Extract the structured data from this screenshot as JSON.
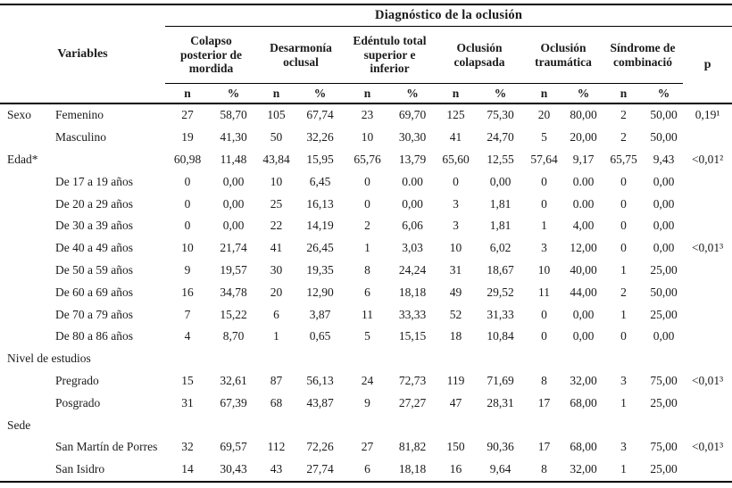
{
  "page": {
    "background": "#ffffff",
    "text_color": "#1b1b1b",
    "rule_color": "#000000"
  },
  "table": {
    "title": "Diagnóstico de la oclusión",
    "variables_header": "Variables",
    "p_header": "p",
    "groups": [
      "Colapso posterior de mordida",
      "Desarmonía oclusal",
      "Edéntulo total superior e inferior",
      "Oclusión colapsada",
      "Oclusión traumática",
      "Síndrome de combinació"
    ],
    "sub": [
      "n",
      "%"
    ],
    "rows": [
      {
        "cat": "Sexo",
        "label": "Femenino",
        "values": [
          "27",
          "58,70",
          "105",
          "67,74",
          "23",
          "69,70",
          "125",
          "75,30",
          "20",
          "80,00",
          "2",
          "50,00"
        ],
        "p": "0,19¹"
      },
      {
        "cat": "",
        "label": "Masculino",
        "values": [
          "19",
          "41,30",
          "50",
          "32,26",
          "10",
          "30,30",
          "41",
          "24,70",
          "5",
          "20,00",
          "2",
          "50,00"
        ],
        "p": ""
      },
      {
        "cat": "Edad*",
        "label": "",
        "values": [
          "60,98",
          "11,48",
          "43,84",
          "15,95",
          "65,76",
          "13,79",
          "65,60",
          "12,55",
          "57,64",
          "9,17",
          "65,75",
          "9,43"
        ],
        "p": "<0,01²"
      },
      {
        "cat": "",
        "label": "De 17 a 19 años",
        "values": [
          "0",
          "0,00",
          "10",
          "6,45",
          "0",
          "0.00",
          "0",
          "0,00",
          "0",
          "0.00",
          "0",
          "0,00"
        ],
        "p": ""
      },
      {
        "cat": "",
        "label": "De 20 a 29 años",
        "values": [
          "0",
          "0,00",
          "25",
          "16,13",
          "0",
          "0,00",
          "3",
          "1,81",
          "0",
          "0.00",
          "0",
          "0,00"
        ],
        "p": ""
      },
      {
        "cat": "",
        "label": "De 30 a 39 años",
        "values": [
          "0",
          "0,00",
          "22",
          "14,19",
          "2",
          "6,06",
          "3",
          "1,81",
          "1",
          "4,00",
          "0",
          "0,00"
        ],
        "p": ""
      },
      {
        "cat": "",
        "label": "De 40 a 49 años",
        "values": [
          "10",
          "21,74",
          "41",
          "26,45",
          "1",
          "3,03",
          "10",
          "6,02",
          "3",
          "12,00",
          "0",
          "0,00"
        ],
        "p": "<0,01³"
      },
      {
        "cat": "",
        "label": "De 50 a 59 años",
        "values": [
          "9",
          "19,57",
          "30",
          "19,35",
          "8",
          "24,24",
          "31",
          "18,67",
          "10",
          "40,00",
          "1",
          "25,00"
        ],
        "p": ""
      },
      {
        "cat": "",
        "label": "De 60 a 69 años",
        "values": [
          "16",
          "34,78",
          "20",
          "12,90",
          "6",
          "18,18",
          "49",
          "29,52",
          "11",
          "44,00",
          "2",
          "50,00"
        ],
        "p": ""
      },
      {
        "cat": "",
        "label": "De 70 a 79 años",
        "values": [
          "7",
          "15,22",
          "6",
          "3,87",
          "11",
          "33,33",
          "52",
          "31,33",
          "0",
          "0,00",
          "1",
          "25,00"
        ],
        "p": ""
      },
      {
        "cat": "",
        "label": "De 80 a 86 años",
        "values": [
          "4",
          "8,70",
          "1",
          "0,65",
          "5",
          "15,15",
          "18",
          "10,84",
          "0",
          "0,00",
          "0",
          "0,00"
        ],
        "p": ""
      },
      {
        "cat": "Nivel de estudios",
        "label": "",
        "values": [],
        "p": ""
      },
      {
        "cat": "",
        "label": "Pregrado",
        "values": [
          "15",
          "32,61",
          "87",
          "56,13",
          "24",
          "72,73",
          "119",
          "71,69",
          "8",
          "32,00",
          "3",
          "75,00"
        ],
        "p": "<0,01³"
      },
      {
        "cat": "",
        "label": "Posgrado",
        "values": [
          "31",
          "67,39",
          "68",
          "43,87",
          "9",
          "27,27",
          "47",
          "28,31",
          "17",
          "68,00",
          "1",
          "25,00"
        ],
        "p": ""
      },
      {
        "cat": "Sede",
        "label": "",
        "values": [],
        "p": ""
      },
      {
        "cat": "",
        "label": "San Martín de Porres",
        "values": [
          "32",
          "69,57",
          "112",
          "72,26",
          "27",
          "81,82",
          "150",
          "90,36",
          "17",
          "68,00",
          "3",
          "75,00"
        ],
        "p": "<0,01³"
      },
      {
        "cat": "",
        "label": "San Isidro",
        "values": [
          "14",
          "30,43",
          "43",
          "27,74",
          "6",
          "18,18",
          "16",
          "9,64",
          "8",
          "32,00",
          "1",
          "25,00"
        ],
        "p": ""
      }
    ]
  }
}
